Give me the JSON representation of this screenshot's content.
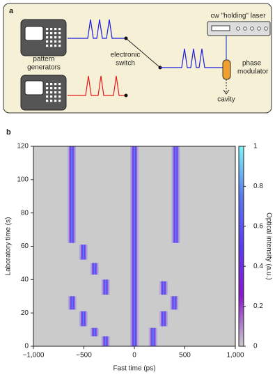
{
  "diagram": {
    "panel_label": "a",
    "laser_label": "cw \"holding\" laser",
    "generator_label": [
      "pattern",
      "generators"
    ],
    "switch_label": [
      "electronic",
      "switch"
    ],
    "modulator_label": [
      "phase",
      "modulator"
    ],
    "cavity_label": "cavity"
  },
  "chart_data": {
    "type": "pulse-map",
    "panel_label": "b",
    "xlabel": "Fast time (ps)",
    "ylabel": "Laboratory time (s)",
    "xlim": [
      -1000,
      1000
    ],
    "xticks": [
      {
        "value": -1000,
        "label": "−1,000"
      },
      {
        "value": -500,
        "label": "−500"
      },
      0,
      500,
      {
        "value": 1000,
        "label": "1,000"
      }
    ],
    "ylim": [
      0,
      120
    ],
    "yticks": [
      0,
      20,
      40,
      60,
      80,
      100,
      120
    ],
    "colorbar_label": "Optical intensity (a.u.)",
    "zlim": [
      0,
      1
    ],
    "zticks": [
      0,
      0.2,
      0.4,
      0.6,
      0.8,
      1
    ],
    "colormap": [
      "#cbcbcb",
      "#8a18cc",
      "#5a3cf0",
      "#5a78f0",
      "#7ff5f5"
    ],
    "color": "#5b4bef",
    "pulses": [
      {
        "x": 0,
        "y": [
          0,
          120
        ]
      },
      {
        "x": -620,
        "y": [
          62,
          120
        ]
      },
      {
        "x": -505,
        "y": [
          52,
          61
        ]
      },
      {
        "x": -395,
        "y": [
          43,
          50
        ]
      },
      {
        "x": -285,
        "y": [
          31,
          40
        ]
      },
      {
        "x": -615,
        "y": [
          22,
          30
        ]
      },
      {
        "x": -505,
        "y": [
          12,
          21
        ]
      },
      {
        "x": -395,
        "y": [
          6,
          11
        ]
      },
      {
        "x": -285,
        "y": [
          0,
          6
        ]
      },
      {
        "x": 410,
        "y": [
          62,
          120
        ]
      },
      {
        "x": 290,
        "y": [
          31,
          39
        ]
      },
      {
        "x": 395,
        "y": [
          22,
          30
        ]
      },
      {
        "x": 290,
        "y": [
          12,
          21
        ]
      },
      {
        "x": 185,
        "y": [
          0,
          11
        ]
      }
    ]
  }
}
